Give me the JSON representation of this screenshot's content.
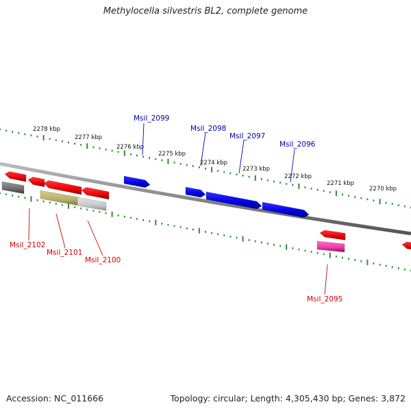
{
  "title": "Methylocella silvestris BL2, complete genome",
  "footer": {
    "accession": "Accession: NC_011666",
    "summary": "Topology: circular; Length: 4,305,430 bp; Genes: 3,872"
  },
  "colors": {
    "backbone": "#8a8a8a",
    "ticks": "#2e8b2e",
    "forward_gene": "#0000ee",
    "reverse_gene": "#ee0000",
    "forward_label": "#0000aa",
    "reverse_label": "#cc0000",
    "grey_gene": "#777777",
    "olive_gene": "#b8b068",
    "light_grey_gene": "#c8c8c8",
    "pink_gene": "#e83aa8"
  },
  "scale": {
    "labels": [
      "2278 kbp",
      "2277 kbp",
      "2276 kbp",
      "2275 kbp",
      "2274 kbp",
      "2273 kbp",
      "2272 kbp",
      "2271 kbp",
      "2270 kbp"
    ]
  },
  "gene_labels": {
    "forward": [
      "Msil_2099",
      "Msil_2098",
      "Msil_2097",
      "Msil_2096"
    ],
    "reverse": [
      "Msil_2102",
      "Msil_2101",
      "Msil_2100",
      "Msil_2095"
    ]
  }
}
